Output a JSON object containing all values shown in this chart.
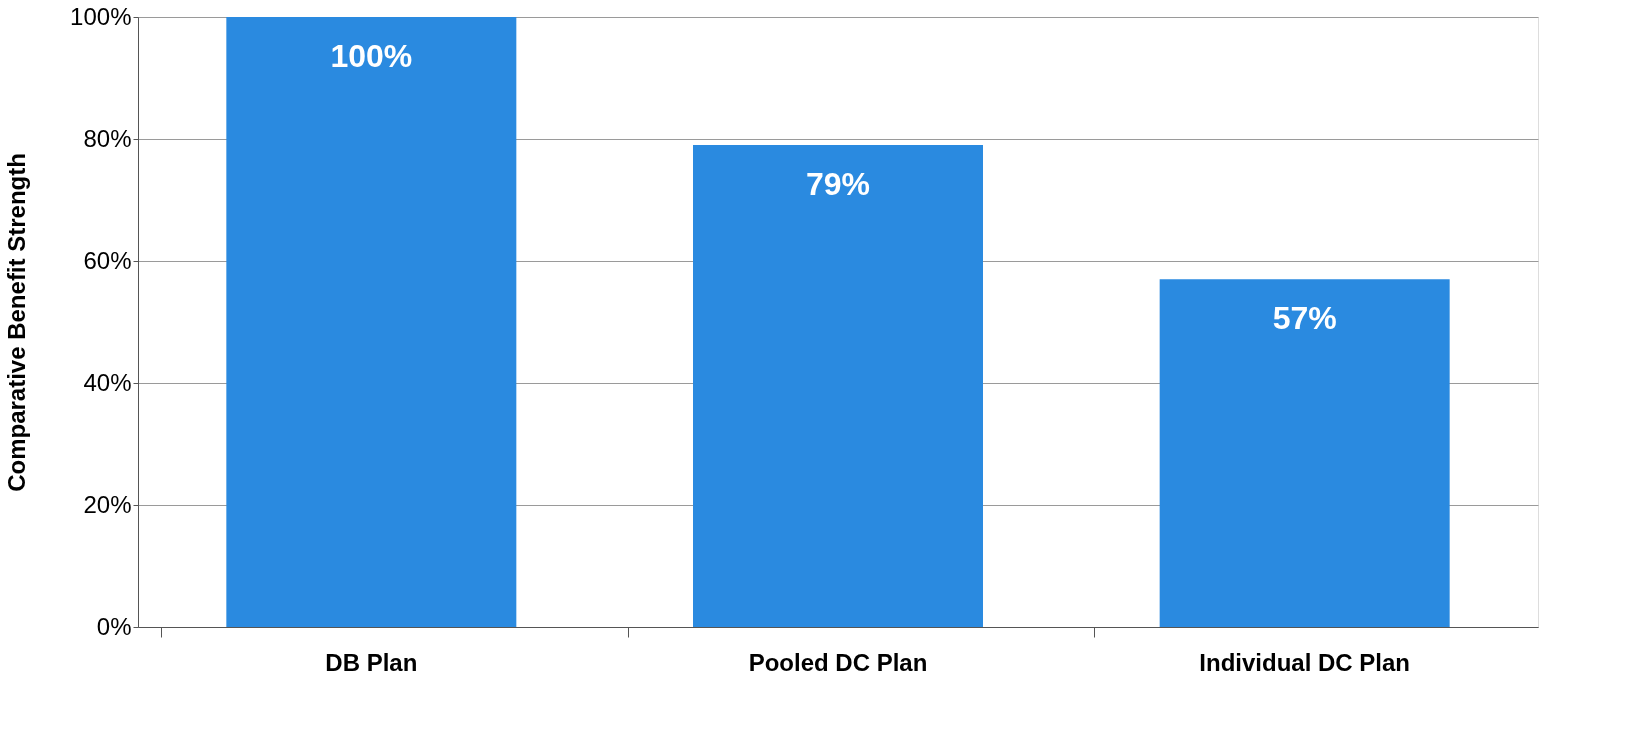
{
  "chart_data": {
    "type": "bar",
    "ylabel": "Comparative Benefit Strength",
    "categories": [
      "DB Plan",
      "Pooled DC Plan",
      "Individual DC Plan"
    ],
    "values": [
      100,
      79,
      57
    ],
    "value_labels": [
      "100%",
      "79%",
      "57%"
    ],
    "color": "#2a8ae0",
    "ylim": [
      0,
      100
    ],
    "yticks": [
      {
        "value": 0,
        "label": "0%"
      },
      {
        "value": 20,
        "label": "20%"
      },
      {
        "value": 40,
        "label": "40%"
      },
      {
        "value": 60,
        "label": "60%"
      },
      {
        "value": 80,
        "label": "80%"
      },
      {
        "value": 100,
        "label": "100%"
      }
    ],
    "grid": "y"
  }
}
